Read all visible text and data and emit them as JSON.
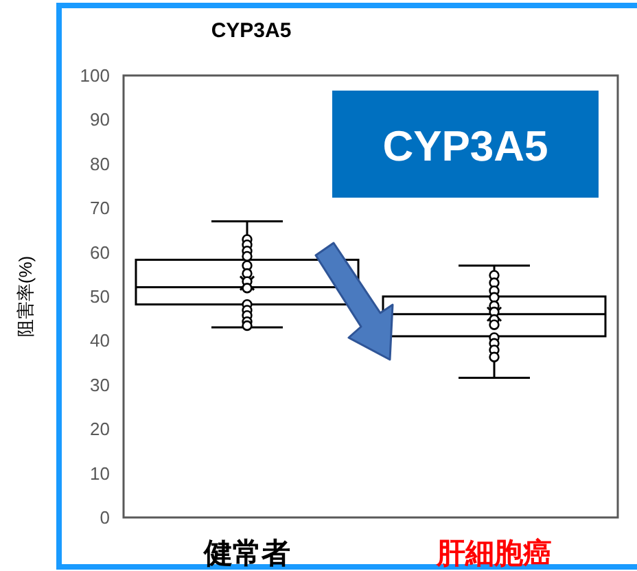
{
  "chart_data": {
    "type": "box",
    "title": "CYP3A5",
    "ylabel": "阻害率(%)",
    "categories": [
      "健常者",
      "肝細胞癌"
    ],
    "boxes": [
      {
        "low": 43,
        "q1": 48.2,
        "median": 52.1,
        "q3": 58.3,
        "high": 67,
        "mean": 53
      },
      {
        "low": 31.6,
        "q1": 41,
        "median": 46,
        "q3": 50,
        "high": 57,
        "mean": 46
      }
    ],
    "series": [
      {
        "type": "scatter",
        "marker": "circle",
        "x": [
          "健常者",
          "健常者",
          "健常者",
          "健常者",
          "健常者",
          "健常者",
          "健常者",
          "健常者",
          "健常者",
          "健常者",
          "健常者",
          "健常者",
          "健常者",
          "肝細胞癌",
          "肝細胞癌",
          "肝細胞癌",
          "肝細胞癌",
          "肝細胞癌",
          "肝細胞癌",
          "肝細胞癌",
          "肝細胞癌",
          "肝細胞癌",
          "肝細胞癌",
          "肝細胞癌",
          "肝細胞癌"
        ],
        "values": [
          62.9,
          61.7,
          60.3,
          59.1,
          57,
          55.2,
          53.4,
          51.9,
          48.2,
          46.9,
          45.7,
          44.3,
          43.4,
          54.8,
          53.1,
          51.3,
          49.8,
          47.9,
          46.5,
          44.8,
          43.6,
          40.7,
          39.4,
          37.9,
          36.3
        ]
      }
    ],
    "ylim": [
      0,
      100
    ],
    "yticks": [
      0,
      10,
      20,
      30,
      40,
      50,
      60,
      70,
      80,
      90,
      100
    ],
    "annotations": [
      "CYP3A5"
    ]
  }
}
